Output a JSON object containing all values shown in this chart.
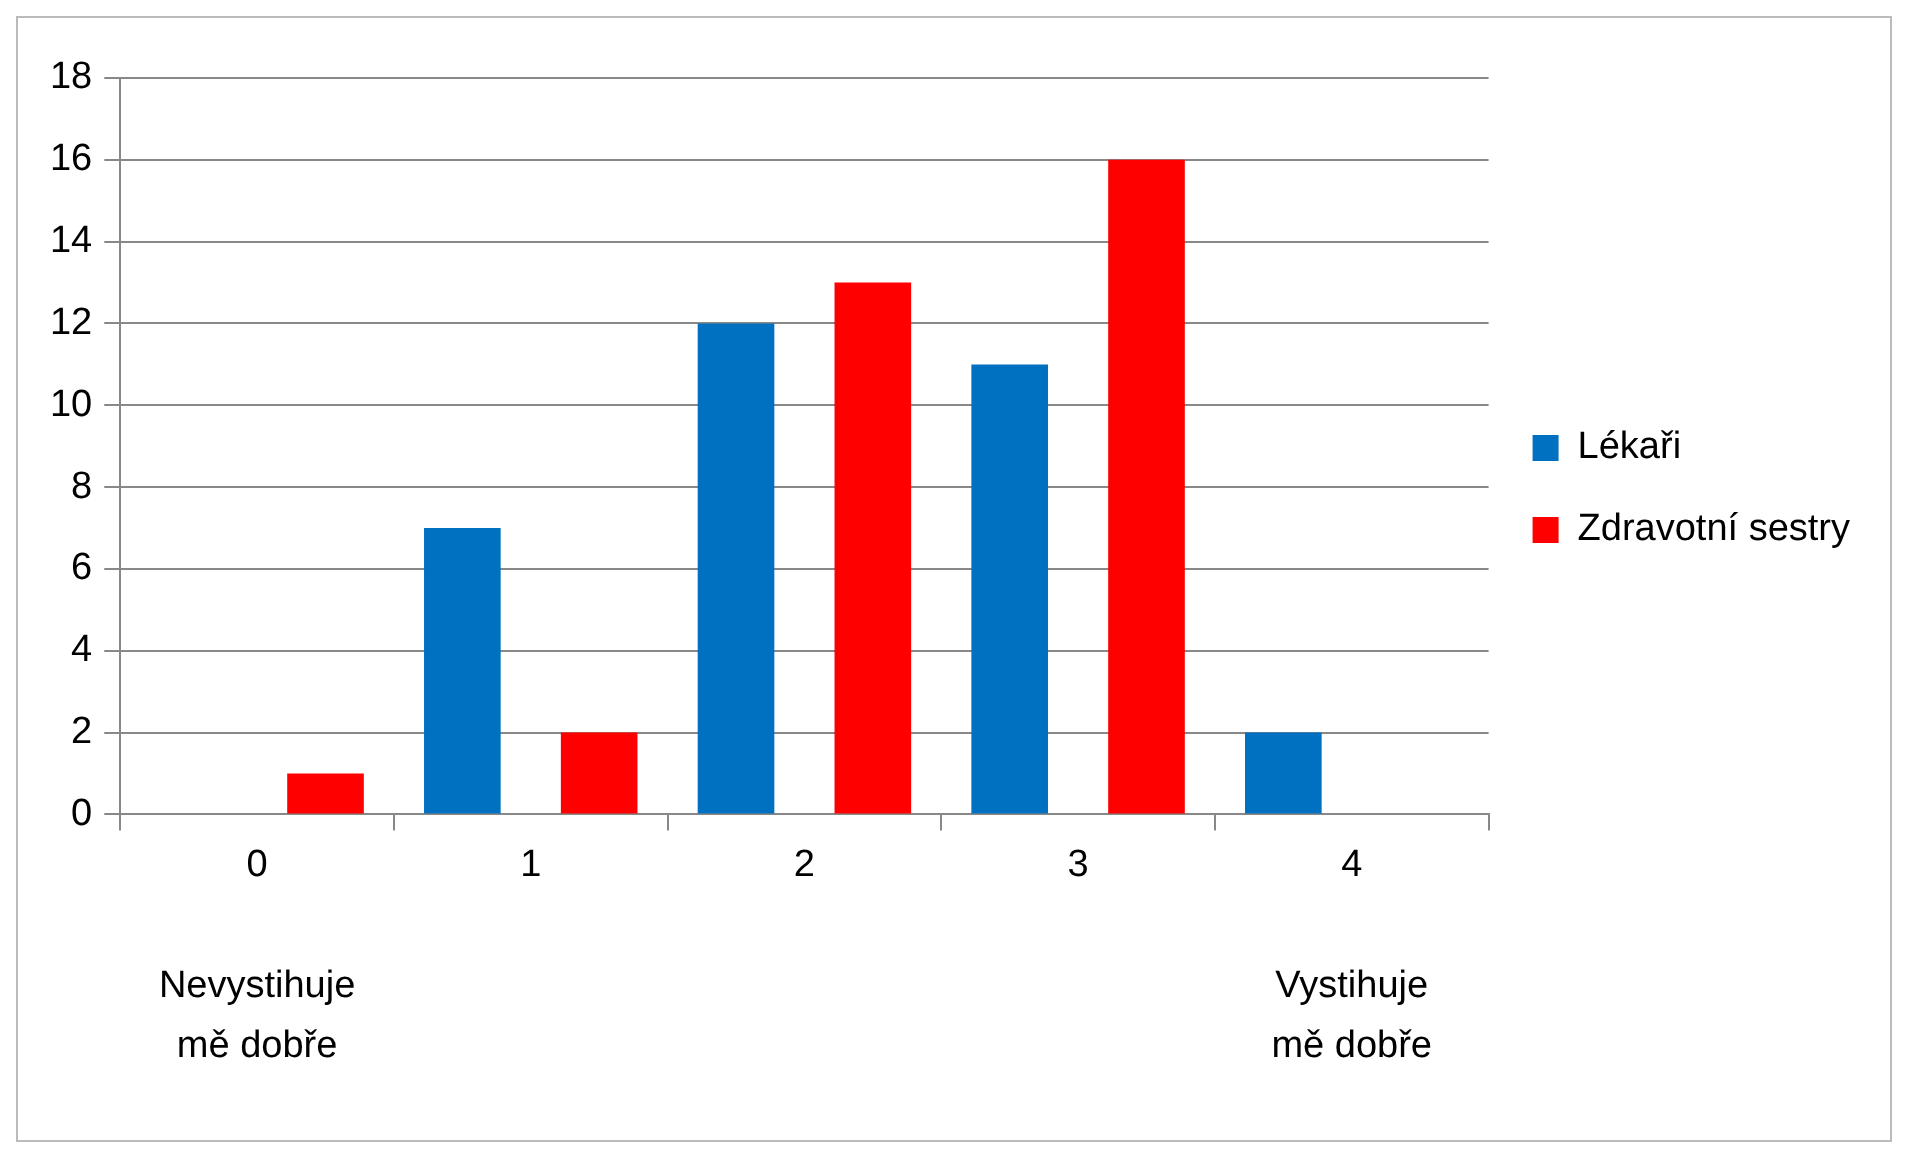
{
  "chart_data": {
    "type": "bar",
    "categories": [
      "0",
      "1",
      "2",
      "3",
      "4"
    ],
    "series": [
      {
        "name": "Lékaři",
        "color": "#0070c0",
        "values": [
          0,
          7,
          12,
          11,
          2
        ]
      },
      {
        "name": "Zdravotní sestry",
        "color": "#ff0000",
        "values": [
          1,
          2,
          13,
          16,
          0
        ]
      }
    ],
    "ylim": [
      0,
      18
    ],
    "yticks": [
      0,
      2,
      4,
      6,
      8,
      10,
      12,
      14,
      16,
      18
    ],
    "grid": "y",
    "legend": "right",
    "annotations": [
      "Nevystihuje mě dobře",
      "Vystihuje mě dobře"
    ]
  }
}
